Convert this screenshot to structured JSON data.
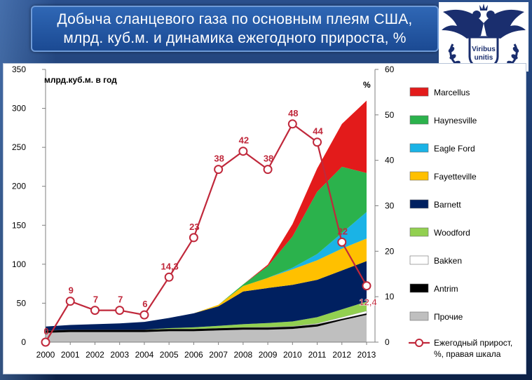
{
  "header": {
    "title_line1": "Добыча сланцевого газа по основным плеям США,",
    "title_line2": "млрд. куб.м. и динамика ежегодного прироста, %"
  },
  "logo": {
    "text_line1": "Viribus",
    "text_line2": "unitis",
    "icon": "double-headed-eagle-emblem",
    "color": "#1a2e6e"
  },
  "chart_data": {
    "type": "area",
    "left_axis_label": "млрд.куб.м. в год",
    "right_axis_label": "%",
    "x": [
      "2000",
      "2001",
      "2002",
      "2003",
      "2004",
      "2005",
      "2006",
      "2007",
      "2008",
      "2009",
      "2010",
      "2011",
      "2012",
      "2013"
    ],
    "y_left_range": [
      0,
      350
    ],
    "y_left_ticks": [
      0,
      50,
      100,
      150,
      200,
      250,
      300,
      350
    ],
    "y_right_range": [
      0,
      60
    ],
    "y_right_ticks": [
      0,
      10,
      20,
      30,
      40,
      50,
      60
    ],
    "stack_order_bottom_to_top": [
      "Прочие",
      "Antrim",
      "Bakken",
      "Woodford",
      "Barnett",
      "Fayetteville",
      "Eagle Ford",
      "Haynesville",
      "Marcellus"
    ],
    "series": [
      {
        "name": "Прочие",
        "color": "#bfbfbf",
        "values": [
          12,
          13,
          13,
          13,
          13,
          14,
          14,
          15,
          16,
          16,
          17,
          20,
          28,
          35
        ]
      },
      {
        "name": "Antrim",
        "color": "#000000",
        "values": [
          3,
          3,
          3,
          3,
          3,
          3,
          3,
          3,
          3,
          3,
          3,
          3,
          2,
          2
        ]
      },
      {
        "name": "Bakken",
        "color": "#ffffff",
        "values": [
          0,
          0,
          0,
          0,
          0,
          0,
          0,
          0,
          0,
          0.5,
          0.5,
          1,
          2,
          3
        ]
      },
      {
        "name": "Woodford",
        "color": "#92d050",
        "values": [
          0,
          0,
          0,
          0,
          0,
          1,
          2,
          3,
          4,
          5,
          6,
          8,
          10,
          12
        ]
      },
      {
        "name": "Barnett",
        "color": "#002060",
        "values": [
          5,
          6,
          7,
          8,
          10,
          13,
          18,
          25,
          42,
          45,
          47,
          48,
          50,
          52
        ]
      },
      {
        "name": "Fayetteville",
        "color": "#ffc000",
        "values": [
          0,
          0,
          0,
          0,
          0,
          0,
          0,
          2,
          7,
          13,
          20,
          25,
          28,
          29
        ]
      },
      {
        "name": "Eagle Ford",
        "color": "#1ab3e6",
        "values": [
          0,
          0,
          0,
          0,
          0,
          0,
          0,
          0,
          0,
          0,
          2,
          8,
          20,
          34
        ]
      },
      {
        "name": "Haynesville",
        "color": "#2bb24c",
        "values": [
          0,
          0,
          0,
          0,
          0,
          0,
          0,
          0,
          2,
          15,
          40,
          80,
          85,
          50
        ]
      },
      {
        "name": "Marcellus",
        "color": "#e31b1b",
        "values": [
          0,
          0,
          0,
          0,
          0,
          0,
          0,
          0,
          0,
          2,
          16,
          30,
          55,
          93
        ]
      }
    ],
    "growth_series": {
      "name": "Ежегодный прирост, %, правая шкала",
      "color": "#c0283b",
      "values": [
        0,
        9,
        7,
        7,
        6,
        14.3,
        23,
        38,
        42,
        38,
        48,
        44,
        22,
        12.4
      ],
      "labels": [
        "0",
        "9",
        "7",
        "7",
        "6",
        "14,3",
        "23",
        "38",
        "42",
        "38",
        "48",
        "44",
        "22",
        "12,4"
      ]
    },
    "legend": {
      "position": "right",
      "items": [
        {
          "label": "Marcellus",
          "color": "#e31b1b"
        },
        {
          "label": "Haynesville",
          "color": "#2bb24c"
        },
        {
          "label": "Eagle Ford",
          "color": "#1ab3e6"
        },
        {
          "label": "Fayetteville",
          "color": "#ffc000"
        },
        {
          "label": "Barnett",
          "color": "#002060"
        },
        {
          "label": "Woodford",
          "color": "#92d050"
        },
        {
          "label": "Bakken",
          "color": "#ffffff"
        },
        {
          "label": "Antrim",
          "color": "#000000"
        },
        {
          "label": "Прочие",
          "color": "#bfbfbf"
        }
      ],
      "line_item": {
        "label_line1": "Ежегодный прирост,",
        "label_line2": "%, правая шкала",
        "color": "#c0283b"
      }
    },
    "grid": false
  }
}
